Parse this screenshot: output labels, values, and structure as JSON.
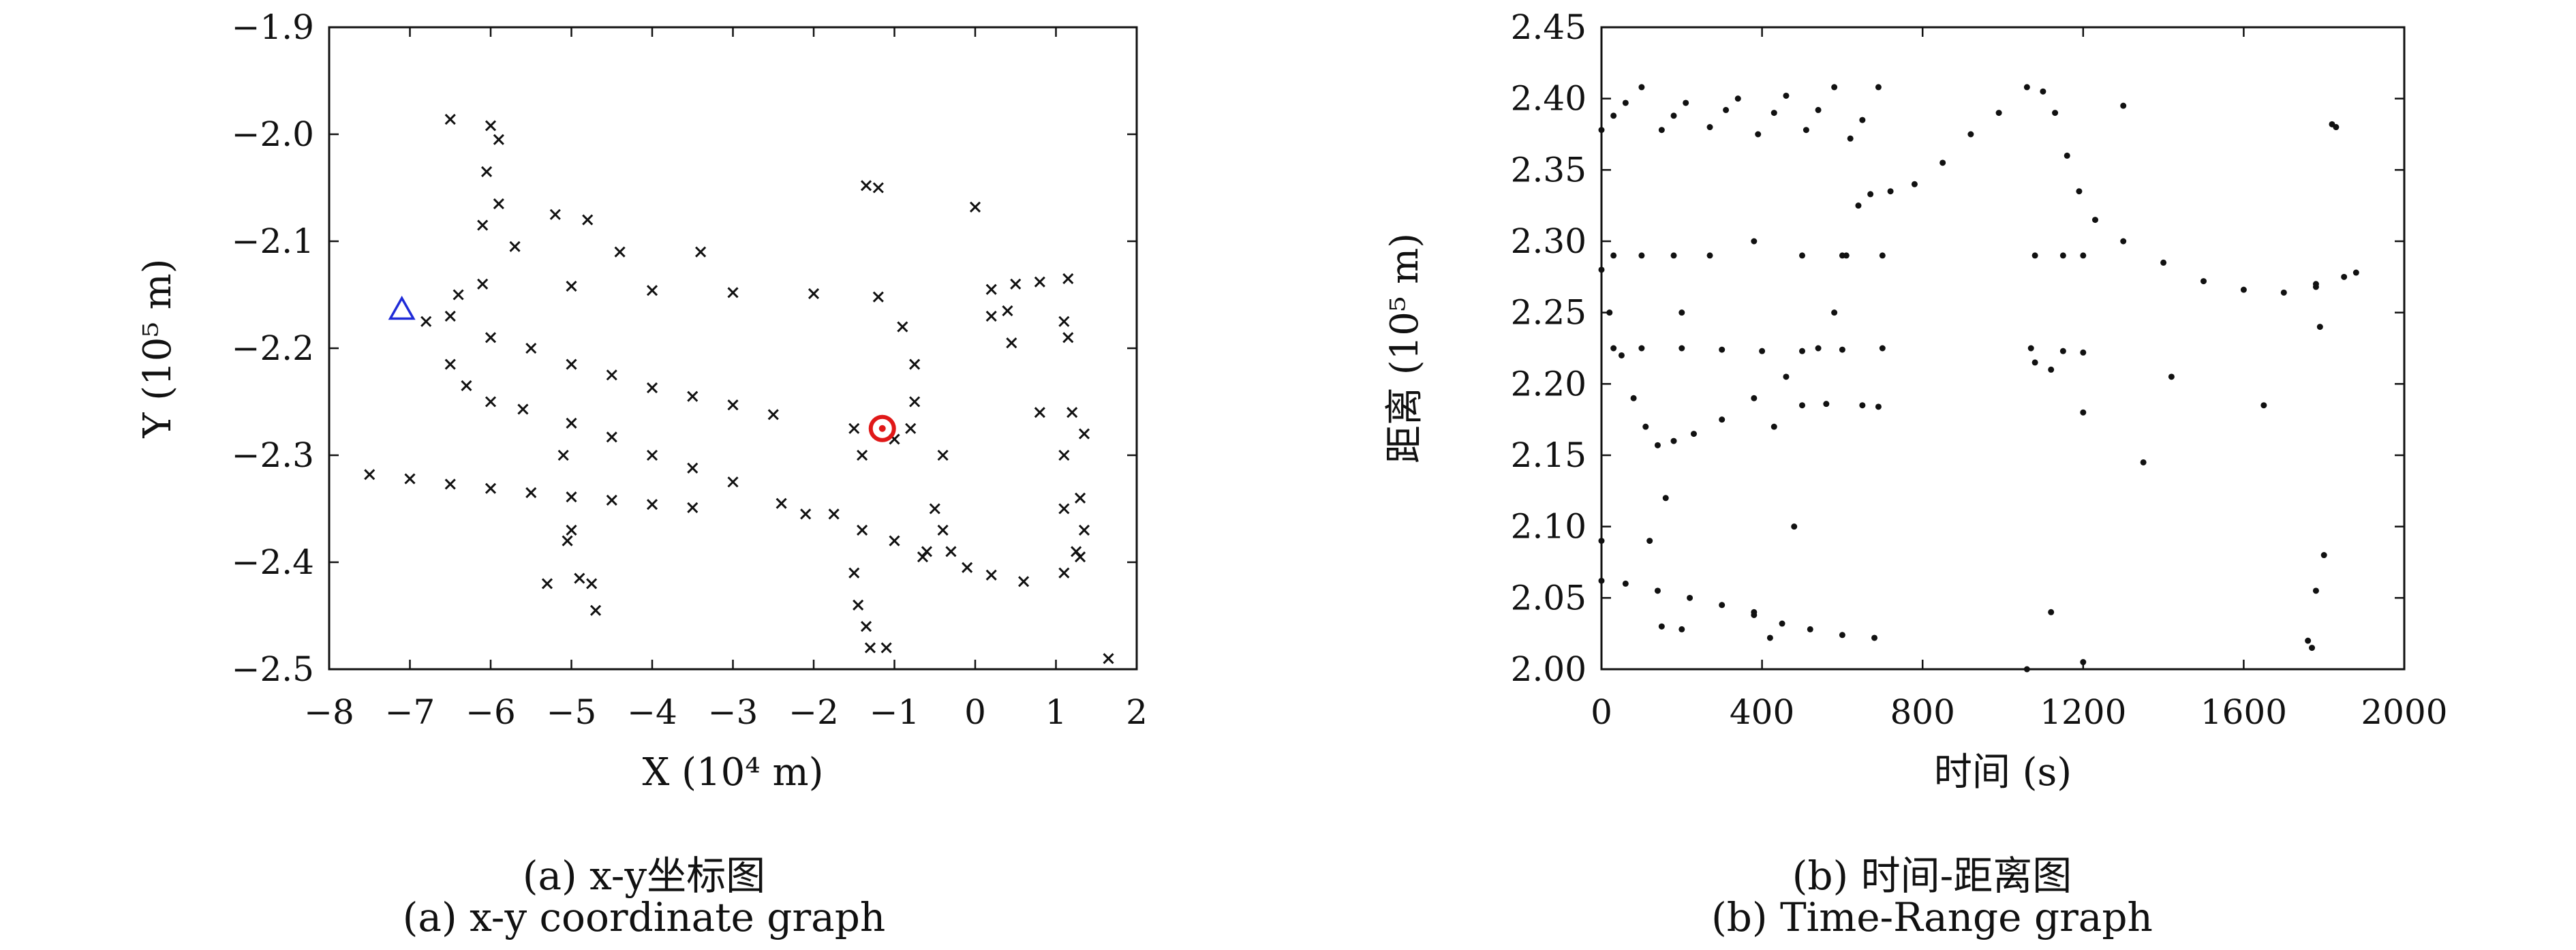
{
  "captions": {
    "a_cn": "(a) x-y坐标图",
    "a_en": "(a) x-y coordinate graph",
    "b_cn": "(b) 时间-距离图",
    "b_en": "(b) Time-Range graph"
  },
  "chart_data": [
    {
      "type": "scatter",
      "xlabel": "X (10⁴ m)",
      "ylabel": "Y (10⁵ m)",
      "xlim": [
        -8,
        2
      ],
      "ylim": [
        -2.5,
        -1.9
      ],
      "xticks": [
        -8,
        -7,
        -6,
        -5,
        -4,
        -3,
        -2,
        -1,
        0,
        1,
        2
      ],
      "yticks": [
        -1.9,
        -2.0,
        -2.1,
        -2.2,
        -2.3,
        -2.4,
        -2.5
      ],
      "xtick_labels": [
        "−8",
        "−7",
        "−6",
        "−5",
        "−4",
        "−3",
        "−2",
        "−1",
        "0",
        "1",
        "2"
      ],
      "ytick_labels": [
        "−1.9",
        "−2.0",
        "−2.1",
        "−2.2",
        "−2.3",
        "−2.4",
        "−2.5"
      ],
      "grid": false,
      "series": [
        {
          "marker": "x",
          "color": "#111111",
          "points": [
            [
              -7.5,
              -2.318
            ],
            [
              -7.0,
              -2.322
            ],
            [
              -6.5,
              -2.327
            ],
            [
              -6.0,
              -2.331
            ],
            [
              -5.5,
              -2.335
            ],
            [
              -5.0,
              -2.339
            ],
            [
              -4.5,
              -2.342
            ],
            [
              -4.0,
              -2.346
            ],
            [
              -3.5,
              -2.349
            ],
            [
              -6.8,
              -2.175
            ],
            [
              -6.4,
              -2.15
            ],
            [
              -6.1,
              -2.14
            ],
            [
              -5.0,
              -2.142
            ],
            [
              -4.0,
              -2.146
            ],
            [
              -3.0,
              -2.148
            ],
            [
              -2.0,
              -2.149
            ],
            [
              -1.2,
              -2.152
            ],
            [
              -0.9,
              -2.18
            ],
            [
              -0.75,
              -2.215
            ],
            [
              -0.75,
              -2.25
            ],
            [
              -0.8,
              -2.275
            ],
            [
              -1.0,
              -2.285
            ],
            [
              -6.5,
              -2.17
            ],
            [
              -6.0,
              -2.19
            ],
            [
              -5.5,
              -2.2
            ],
            [
              -5.0,
              -2.215
            ],
            [
              -4.5,
              -2.225
            ],
            [
              -4.0,
              -2.237
            ],
            [
              -3.5,
              -2.245
            ],
            [
              -3.0,
              -2.253
            ],
            [
              -2.5,
              -2.262
            ],
            [
              -6.5,
              -2.215
            ],
            [
              -6.3,
              -2.235
            ],
            [
              -6.0,
              -2.25
            ],
            [
              -5.6,
              -2.257
            ],
            [
              -5.0,
              -2.27
            ],
            [
              -4.5,
              -2.283
            ],
            [
              -4.0,
              -2.3
            ],
            [
              -3.5,
              -2.312
            ],
            [
              -3.0,
              -2.325
            ],
            [
              0.2,
              -2.17
            ],
            [
              0.45,
              -2.195
            ],
            [
              0.8,
              -2.26
            ],
            [
              1.1,
              -2.3
            ],
            [
              1.3,
              -2.34
            ],
            [
              1.35,
              -2.37
            ],
            [
              1.3,
              -2.395
            ],
            [
              1.1,
              -2.41
            ],
            [
              0.6,
              -2.418
            ],
            [
              0.2,
              -2.412
            ],
            [
              -0.1,
              -2.405
            ],
            [
              -0.3,
              -2.39
            ],
            [
              -0.4,
              -2.37
            ],
            [
              -0.5,
              -2.35
            ],
            [
              -1.35,
              -2.048
            ],
            [
              -1.2,
              -2.05
            ],
            [
              0.0,
              -2.068
            ],
            [
              0.5,
              -2.14
            ],
            [
              0.8,
              -2.138
            ],
            [
              1.15,
              -2.135
            ],
            [
              0.2,
              -2.145
            ],
            [
              1.1,
              -2.175
            ],
            [
              1.15,
              -2.19
            ],
            [
              0.4,
              -2.165
            ],
            [
              1.2,
              -2.26
            ],
            [
              1.35,
              -2.28
            ],
            [
              1.1,
              -2.35
            ],
            [
              1.25,
              -2.39
            ],
            [
              1.65,
              -2.49
            ],
            [
              -6.5,
              -1.986
            ],
            [
              -6.0,
              -1.992
            ],
            [
              -5.9,
              -2.005
            ],
            [
              -6.05,
              -2.035
            ],
            [
              -5.9,
              -2.065
            ],
            [
              -6.1,
              -2.085
            ],
            [
              -5.7,
              -2.105
            ],
            [
              -5.2,
              -2.075
            ],
            [
              -4.8,
              -2.08
            ],
            [
              -4.4,
              -2.11
            ],
            [
              -3.4,
              -2.11
            ],
            [
              -5.3,
              -2.42
            ],
            [
              -5.0,
              -2.37
            ],
            [
              -5.05,
              -2.38
            ],
            [
              -4.9,
              -2.415
            ],
            [
              -4.75,
              -2.42
            ],
            [
              -4.7,
              -2.445
            ],
            [
              -5.1,
              -2.3
            ],
            [
              -2.4,
              -2.345
            ],
            [
              -2.1,
              -2.355
            ],
            [
              -1.75,
              -2.355
            ],
            [
              -1.4,
              -2.37
            ],
            [
              -1.5,
              -2.41
            ],
            [
              -1.45,
              -2.44
            ],
            [
              -1.35,
              -2.46
            ],
            [
              -1.3,
              -2.48
            ],
            [
              -1.1,
              -2.48
            ],
            [
              -1.5,
              -2.275
            ],
            [
              -1.4,
              -2.3
            ],
            [
              -1.0,
              -2.38
            ],
            [
              -0.6,
              -2.39
            ],
            [
              -0.65,
              -2.395
            ],
            [
              -0.4,
              -2.3
            ]
          ]
        },
        {
          "name": "",
          "marker": "triangle",
          "color": "#1f2bd8",
          "points": [
            [
              -7.1,
              -2.164
            ]
          ]
        },
        {
          "name": "",
          "marker": "circle",
          "color": "#e01818",
          "points": [
            [
              -1.15,
              -2.275
            ]
          ]
        }
      ]
    },
    {
      "type": "scatter",
      "xlabel": "时间 (s)",
      "ylabel": "距离 (10⁵ m)",
      "xlim": [
        0,
        2000
      ],
      "ylim": [
        2.0,
        2.45
      ],
      "xticks": [
        0,
        400,
        800,
        1200,
        1600,
        2000
      ],
      "yticks": [
        2.0,
        2.05,
        2.1,
        2.15,
        2.2,
        2.25,
        2.3,
        2.35,
        2.4,
        2.45
      ],
      "xtick_labels": [
        "0",
        "400",
        "800",
        "1200",
        "1600",
        "2000"
      ],
      "ytick_labels": [
        "2.00",
        "2.05",
        "2.10",
        "2.15",
        "2.20",
        "2.25",
        "2.30",
        "2.35",
        "2.40",
        "2.45"
      ],
      "grid": false,
      "series": [
        {
          "marker": "dot",
          "color": "#111111",
          "points": [
            [
              0,
              2.28
            ],
            [
              20,
              2.25
            ],
            [
              50,
              2.22
            ],
            [
              80,
              2.19
            ],
            [
              110,
              2.17
            ],
            [
              140,
              2.157
            ],
            [
              180,
              2.16
            ],
            [
              230,
              2.165
            ],
            [
              300,
              2.175
            ],
            [
              380,
              2.19
            ],
            [
              460,
              2.205
            ],
            [
              540,
              2.225
            ],
            [
              580,
              2.25
            ],
            [
              610,
              2.29
            ],
            [
              640,
              2.325
            ],
            [
              670,
              2.333
            ],
            [
              720,
              2.335
            ],
            [
              780,
              2.34
            ],
            [
              850,
              2.355
            ],
            [
              920,
              2.375
            ],
            [
              990,
              2.39
            ],
            [
              1060,
              2.408
            ],
            [
              1100,
              2.405
            ],
            [
              1130,
              2.39
            ],
            [
              1160,
              2.36
            ],
            [
              1190,
              2.335
            ],
            [
              1230,
              2.315
            ],
            [
              1300,
              2.3
            ],
            [
              1400,
              2.285
            ],
            [
              1500,
              2.272
            ],
            [
              1600,
              2.266
            ],
            [
              1700,
              2.264
            ],
            [
              1780,
              2.268
            ],
            [
              1850,
              2.275
            ],
            [
              1880,
              2.278
            ],
            [
              0,
              2.378
            ],
            [
              30,
              2.388
            ],
            [
              60,
              2.397
            ],
            [
              100,
              2.408
            ],
            [
              150,
              2.378
            ],
            [
              180,
              2.388
            ],
            [
              210,
              2.397
            ],
            [
              270,
              2.38
            ],
            [
              310,
              2.392
            ],
            [
              340,
              2.4
            ],
            [
              390,
              2.375
            ],
            [
              430,
              2.39
            ],
            [
              460,
              2.402
            ],
            [
              510,
              2.378
            ],
            [
              540,
              2.392
            ],
            [
              580,
              2.408
            ],
            [
              620,
              2.372
            ],
            [
              650,
              2.385
            ],
            [
              690,
              2.408
            ],
            [
              0,
              2.062
            ],
            [
              60,
              2.06
            ],
            [
              140,
              2.055
            ],
            [
              220,
              2.05
            ],
            [
              300,
              2.045
            ],
            [
              380,
              2.038
            ],
            [
              450,
              2.032
            ],
            [
              520,
              2.028
            ],
            [
              600,
              2.024
            ],
            [
              680,
              2.022
            ],
            [
              150,
              2.03
            ],
            [
              200,
              2.028
            ],
            [
              30,
              2.29
            ],
            [
              100,
              2.29
            ],
            [
              180,
              2.29
            ],
            [
              270,
              2.29
            ],
            [
              500,
              2.29
            ],
            [
              600,
              2.29
            ],
            [
              700,
              2.29
            ],
            [
              1080,
              2.29
            ],
            [
              1150,
              2.29
            ],
            [
              1200,
              2.29
            ],
            [
              30,
              2.225
            ],
            [
              100,
              2.225
            ],
            [
              200,
              2.225
            ],
            [
              300,
              2.224
            ],
            [
              400,
              2.223
            ],
            [
              500,
              2.223
            ],
            [
              600,
              2.224
            ],
            [
              700,
              2.225
            ],
            [
              1070,
              2.225
            ],
            [
              1150,
              2.223
            ],
            [
              1200,
              2.222
            ],
            [
              500,
              2.185
            ],
            [
              560,
              2.186
            ],
            [
              650,
              2.185
            ],
            [
              690,
              2.184
            ],
            [
              1080,
              2.215
            ],
            [
              1120,
              2.21
            ],
            [
              1200,
              2.18
            ],
            [
              120,
              2.09
            ],
            [
              160,
              2.12
            ],
            [
              200,
              2.25
            ],
            [
              380,
              2.3
            ],
            [
              430,
              2.17
            ],
            [
              480,
              2.1
            ],
            [
              380,
              2.04
            ],
            [
              420,
              2.022
            ],
            [
              1120,
              2.04
            ],
            [
              1350,
              2.145
            ],
            [
              1420,
              2.205
            ],
            [
              1650,
              2.185
            ],
            [
              1780,
              2.27
            ],
            [
              1790,
              2.24
            ],
            [
              1800,
              2.08
            ],
            [
              1780,
              2.055
            ],
            [
              1760,
              2.02
            ],
            [
              1770,
              2.015
            ],
            [
              1830,
              2.38
            ],
            [
              1820,
              2.382
            ],
            [
              1300,
              2.395
            ],
            [
              1200,
              2.005
            ],
            [
              1060,
              2.0
            ],
            [
              0,
              2.09
            ]
          ]
        }
      ]
    }
  ]
}
